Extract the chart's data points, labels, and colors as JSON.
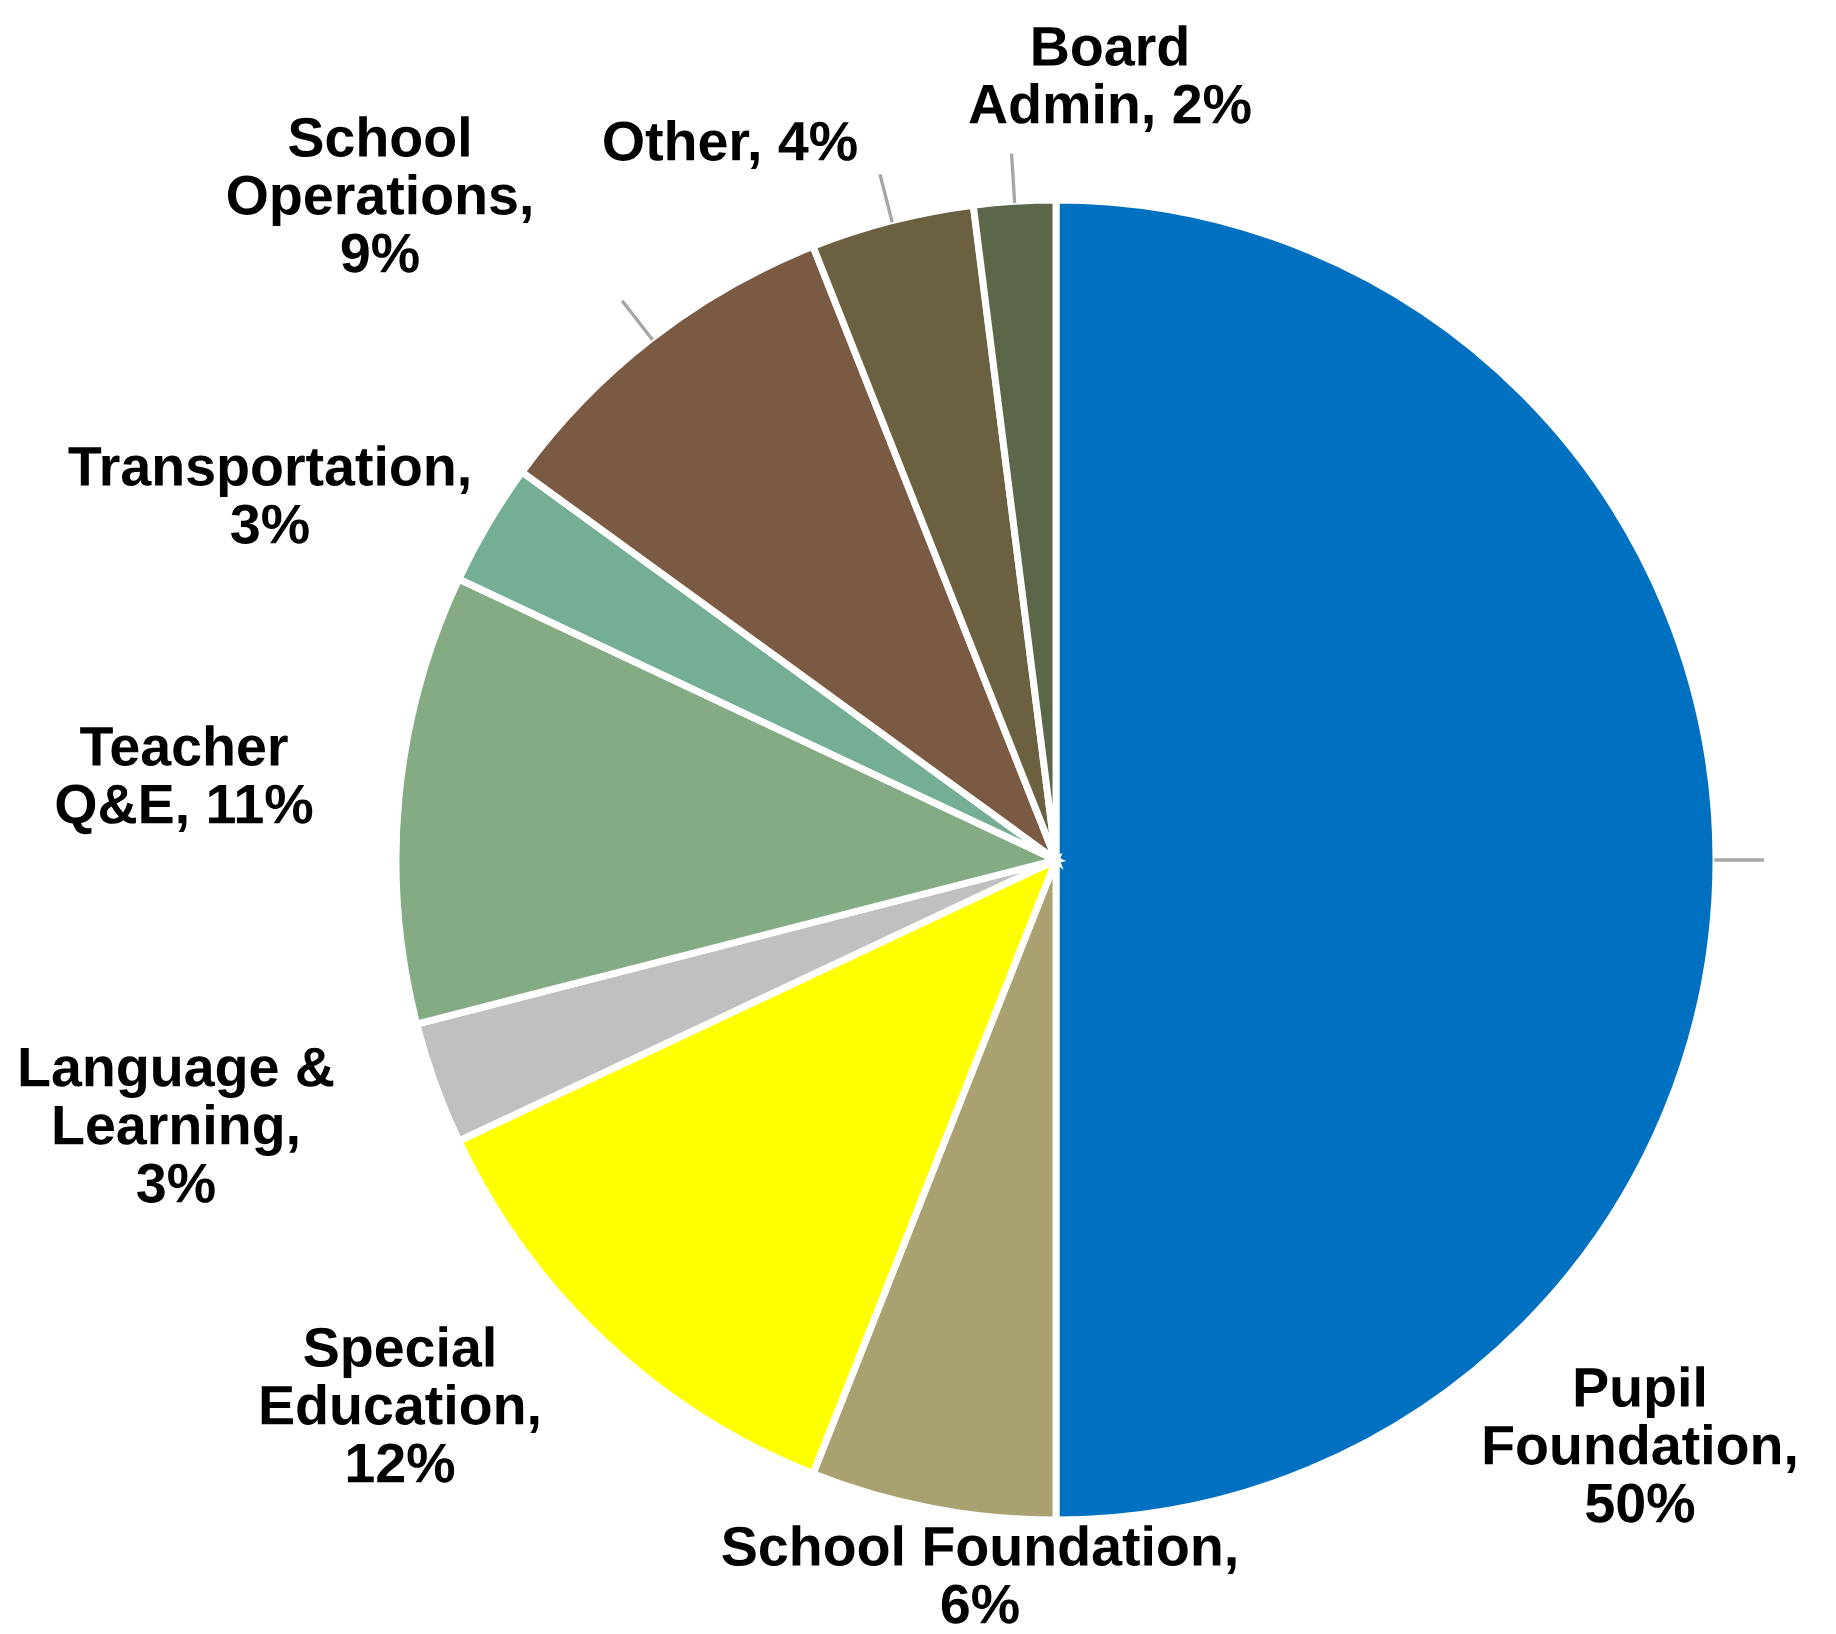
{
  "chart_data": {
    "type": "pie",
    "categories": [
      "Pupil\nFoundation,\n50%",
      "School Foundation,\n6%",
      "Special\nEducation,\n12%",
      "Language &\nLearning,\n3%",
      "Teacher\nQ&E, 11%",
      "Transportation,\n3%",
      "School\nOperations,\n9%",
      "Other, 4%",
      "Board\nAdmin, 2%"
    ],
    "values": [
      50,
      6,
      12,
      3,
      11,
      3,
      9,
      4,
      2
    ],
    "colors": [
      "#0070c0",
      "#a9a270",
      "#ffff00",
      "#c0c0c0",
      "#84ab84",
      "#74ae94",
      "#7b5a43",
      "#6b6040",
      "#5c6648"
    ],
    "legend": false
  }
}
